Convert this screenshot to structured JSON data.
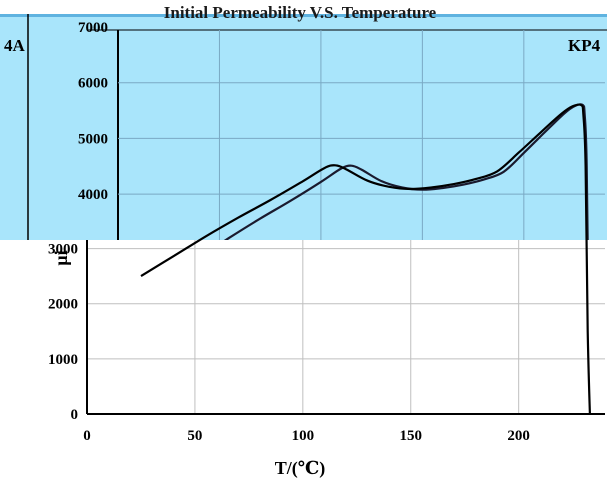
{
  "chart_data": {
    "type": "line",
    "title": "Initial Permeability V.S. Temperature",
    "xlabel": "T/(℃)",
    "ylabel": "μi",
    "xlim": [
      0,
      240
    ],
    "ylim": [
      0,
      7000
    ],
    "x_ticks": [
      0,
      50,
      100,
      150,
      200
    ],
    "y_ticks": [
      0,
      1000,
      2000,
      3000,
      4000,
      5000,
      6000,
      7000
    ],
    "grid": true,
    "legend": "none",
    "series": [
      {
        "name": "KP4",
        "color": "#000000",
        "x": [
          25,
          40,
          55,
          70,
          85,
          100,
          110,
          115,
          120,
          130,
          140,
          150,
          160,
          170,
          180,
          190,
          200,
          210,
          220,
          225,
          229,
          230,
          231,
          232,
          233
        ],
        "y": [
          2500,
          2860,
          3220,
          3560,
          3880,
          4220,
          4460,
          4510,
          4440,
          4230,
          4120,
          4080,
          4110,
          4170,
          4260,
          4400,
          4740,
          5100,
          5450,
          5580,
          5600,
          5420,
          4500,
          1500,
          0
        ]
      }
    ],
    "part_labels": {
      "left": "4A",
      "right": "KP4"
    }
  }
}
